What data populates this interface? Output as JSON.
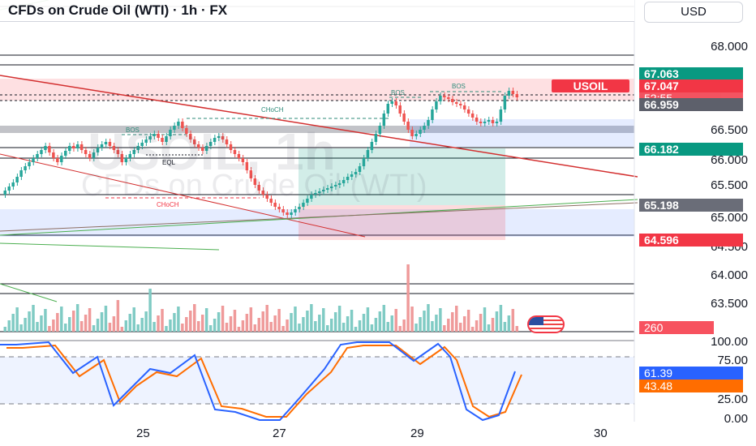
{
  "header": {
    "title": "CFDs on Crude Oil (WTI) · 1h · FX",
    "currency_button": "USD"
  },
  "watermark": {
    "symbol": "USOIL, 1h",
    "name": "CFDs on Crude Oil (WTI)"
  },
  "price_axis": {
    "labels": [
      "68.000",
      "66.500",
      "66.000",
      "65.500",
      "65.000",
      "64.500",
      "64.000",
      "63.500"
    ]
  },
  "price_tags": {
    "high": {
      "text": "67.063",
      "color": "#089981"
    },
    "last": {
      "text": "67.047",
      "color": "#f23645"
    },
    "countdown": {
      "text": "52:55",
      "color": "#f23645"
    },
    "gray": {
      "text": "66.959",
      "color": "#5d606b"
    },
    "green2": {
      "text": "66.182",
      "color": "#089981"
    },
    "gray2": {
      "text": "65.198",
      "color": "#6a6d78"
    },
    "red2": {
      "text": "64.596",
      "color": "#f23645"
    },
    "symbol": "USOIL"
  },
  "volume": {
    "label": "260",
    "color": "#f7525f"
  },
  "stochastic": {
    "axis_labels": [
      "100.00",
      "75.00",
      "25.00",
      "0.00"
    ],
    "k_value": "61.39",
    "d_value": "43.48",
    "k_color": "#2962ff",
    "d_color": "#ff6d00"
  },
  "time_axis": {
    "labels": [
      "25",
      "27",
      "29",
      "30"
    ]
  },
  "annotations": {
    "bos1": "BOS",
    "bos2": "BOS",
    "bos3": "BOS",
    "choch1": "CHoCH",
    "choch2": "CHoCH",
    "eql": "EQL"
  },
  "icons": {
    "flag": "us-flag-icon"
  }
}
